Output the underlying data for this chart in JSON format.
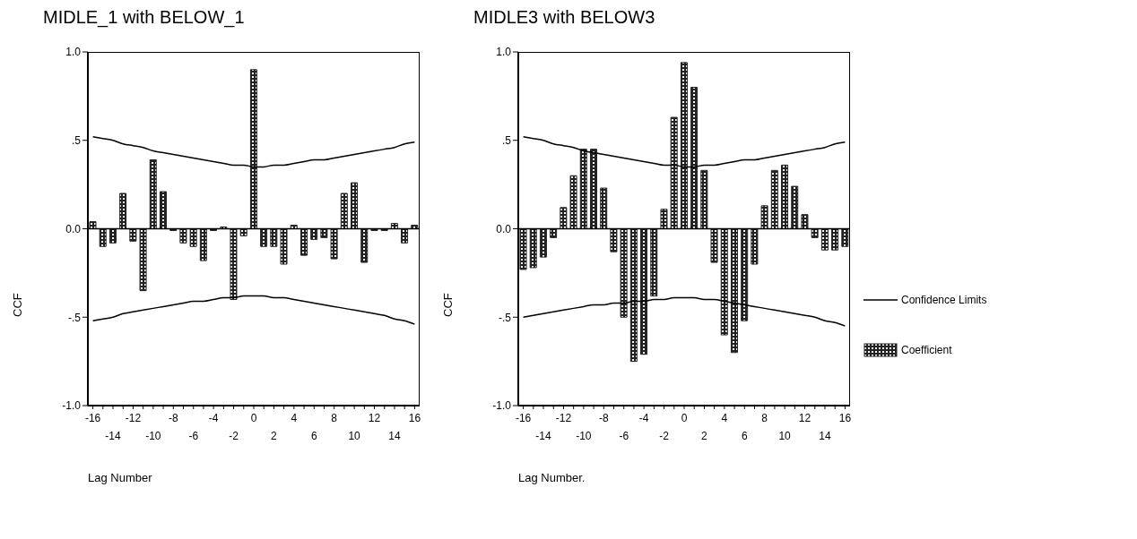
{
  "chart_data": [
    {
      "type": "bar",
      "title": "MIDLE_1 with BELOW_1",
      "xlabel": "Lag Number",
      "ylabel": "CCF",
      "categories": [
        "-16",
        null,
        "-14",
        null,
        "-12",
        null,
        "-10",
        null,
        "-8",
        null,
        "-6",
        null,
        "-4",
        null,
        "-2",
        null,
        "0",
        null,
        "2",
        null,
        "4",
        null,
        "6",
        null,
        "8",
        null,
        "10",
        null,
        "12",
        null,
        "14",
        null,
        "16"
      ],
      "series": [
        {
          "type": "line",
          "color": "#000000",
          "values": [
            0.52,
            0.51,
            0.5,
            0.48,
            0.47,
            0.46,
            0.44,
            0.43,
            0.42,
            0.41,
            0.4,
            0.39,
            0.38,
            0.37,
            0.36,
            0.36,
            0.35,
            0.35,
            0.36,
            0.36,
            0.37,
            0.38,
            0.39,
            0.39,
            0.4,
            0.41,
            0.42,
            0.43,
            0.44,
            0.45,
            0.46,
            0.48,
            0.49
          ]
        },
        {
          "type": "line",
          "color": "#000000",
          "values": [
            -0.52,
            -0.51,
            -0.5,
            -0.48,
            -0.47,
            -0.46,
            -0.45,
            -0.44,
            -0.43,
            -0.42,
            -0.41,
            -0.41,
            -0.4,
            -0.39,
            -0.39,
            -0.38,
            -0.38,
            -0.38,
            -0.39,
            -0.39,
            -0.4,
            -0.41,
            -0.42,
            -0.43,
            -0.44,
            -0.45,
            -0.46,
            -0.47,
            -0.48,
            -0.49,
            -0.51,
            -0.52,
            -0.54
          ]
        },
        {
          "color": "#222222",
          "values": [
            0.04,
            -0.1,
            -0.08,
            0.2,
            -0.07,
            -0.35,
            0.39,
            0.21,
            -0.01,
            -0.08,
            -0.1,
            -0.18,
            -0.01,
            0.01,
            -0.4,
            -0.04,
            0.9,
            -0.1,
            -0.1,
            -0.2,
            0.02,
            -0.15,
            -0.06,
            -0.05,
            -0.17,
            0.2,
            0.26,
            -0.19,
            -0.01,
            -0.01,
            0.03,
            -0.08,
            0.02
          ]
        }
      ],
      "ylim": [
        -1,
        1
      ],
      "yticks": [
        {
          "value": -1,
          "label": "-1.0"
        },
        {
          "value": -0.5,
          "label": "-.5"
        },
        {
          "value": 0,
          "label": "0.0"
        },
        {
          "value": 0.5,
          "label": ".5"
        },
        {
          "value": 1,
          "label": "1.0"
        }
      ],
      "ref_lines": [
        {
          "axis": "y",
          "value": 0
        }
      ],
      "grid": false,
      "legend": false
    },
    {
      "type": "bar",
      "title": "MIDLE3 with BELOW3",
      "xlabel": "Lag Number.",
      "ylabel": "CCF",
      "categories": [
        "-16",
        null,
        "-14",
        null,
        "-12",
        null,
        "-10",
        null,
        "-8",
        null,
        "-6",
        null,
        "-4",
        null,
        "-2",
        null,
        "0",
        null,
        "2",
        null,
        "4",
        null,
        "6",
        null,
        "8",
        null,
        "10",
        null,
        "12",
        null,
        "14",
        null,
        "16"
      ],
      "series": [
        {
          "name": "Confidence Limits",
          "type": "line",
          "color": "#000000",
          "values": [
            0.52,
            0.51,
            0.5,
            0.48,
            0.47,
            0.46,
            0.44,
            0.43,
            0.42,
            0.41,
            0.4,
            0.39,
            0.38,
            0.37,
            0.36,
            0.36,
            0.35,
            0.35,
            0.36,
            0.36,
            0.37,
            0.38,
            0.39,
            0.39,
            0.4,
            0.41,
            0.42,
            0.43,
            0.44,
            0.45,
            0.46,
            0.48,
            0.49
          ]
        },
        {
          "type": "line",
          "color": "#000000",
          "values": [
            -0.5,
            -0.49,
            -0.48,
            -0.47,
            -0.46,
            -0.45,
            -0.44,
            -0.43,
            -0.43,
            -0.42,
            -0.42,
            -0.41,
            -0.41,
            -0.4,
            -0.4,
            -0.39,
            -0.39,
            -0.39,
            -0.4,
            -0.4,
            -0.41,
            -0.42,
            -0.43,
            -0.44,
            -0.45,
            -0.46,
            -0.47,
            -0.48,
            -0.49,
            -0.5,
            -0.52,
            -0.53,
            -0.55
          ]
        },
        {
          "name": "Coefficient",
          "color": "#222222",
          "values": [
            -0.23,
            -0.22,
            -0.16,
            -0.05,
            0.12,
            0.3,
            0.45,
            0.45,
            0.23,
            -0.13,
            -0.5,
            -0.75,
            -0.71,
            -0.38,
            0.11,
            0.63,
            0.94,
            0.8,
            0.33,
            -0.19,
            -0.6,
            -0.7,
            -0.52,
            -0.2,
            0.13,
            0.33,
            0.36,
            0.24,
            0.08,
            -0.05,
            -0.12,
            -0.12,
            -0.1
          ]
        }
      ],
      "ylim": [
        -1,
        1
      ],
      "yticks": [
        {
          "value": -1,
          "label": "-1.0"
        },
        {
          "value": -0.5,
          "label": "-.5"
        },
        {
          "value": 0,
          "label": "0.0"
        },
        {
          "value": 0.5,
          "label": ".5"
        },
        {
          "value": 1,
          "label": "1.0"
        }
      ],
      "ref_lines": [
        {
          "axis": "y",
          "value": 0
        }
      ],
      "grid": false,
      "legend": "right"
    }
  ]
}
